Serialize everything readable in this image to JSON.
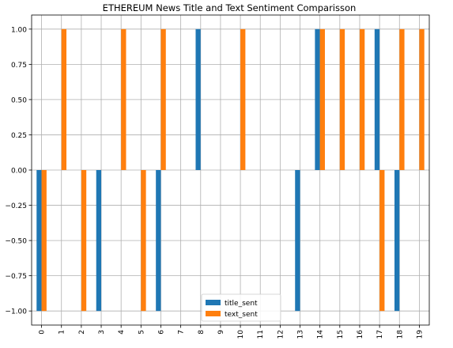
{
  "chart_data": {
    "type": "bar",
    "title": "ETHEREUM News Title and Text Sentiment Comparisson",
    "xlabel": "",
    "ylabel": "",
    "categories": [
      "0",
      "1",
      "2",
      "3",
      "4",
      "5",
      "6",
      "7",
      "8",
      "9",
      "10",
      "11",
      "12",
      "13",
      "14",
      "15",
      "16",
      "17",
      "18",
      "19"
    ],
    "ylim": [
      -1.1,
      1.1
    ],
    "yticks": [
      "1.00",
      "0.75",
      "0.50",
      "0.25",
      "0.00",
      "−0.25",
      "−0.50",
      "−0.75",
      "−1.00"
    ],
    "ytick_values": [
      1.0,
      0.75,
      0.5,
      0.25,
      0.0,
      -0.25,
      -0.5,
      -0.75,
      -1.0
    ],
    "grid": true,
    "legend_position": "lower-center",
    "series": [
      {
        "name": "title_sent",
        "color": "#1f77b4",
        "values": [
          -1,
          0,
          0,
          -1,
          0,
          0,
          -1,
          0,
          1,
          0,
          0,
          0,
          0,
          -1,
          1,
          0,
          0,
          1,
          -1,
          0
        ]
      },
      {
        "name": "text_sent",
        "color": "#ff7f0e",
        "values": [
          -1,
          1,
          -1,
          0,
          1,
          -1,
          1,
          0,
          0,
          0,
          1,
          0,
          0,
          0,
          1,
          1,
          1,
          -1,
          1,
          1
        ]
      }
    ]
  }
}
